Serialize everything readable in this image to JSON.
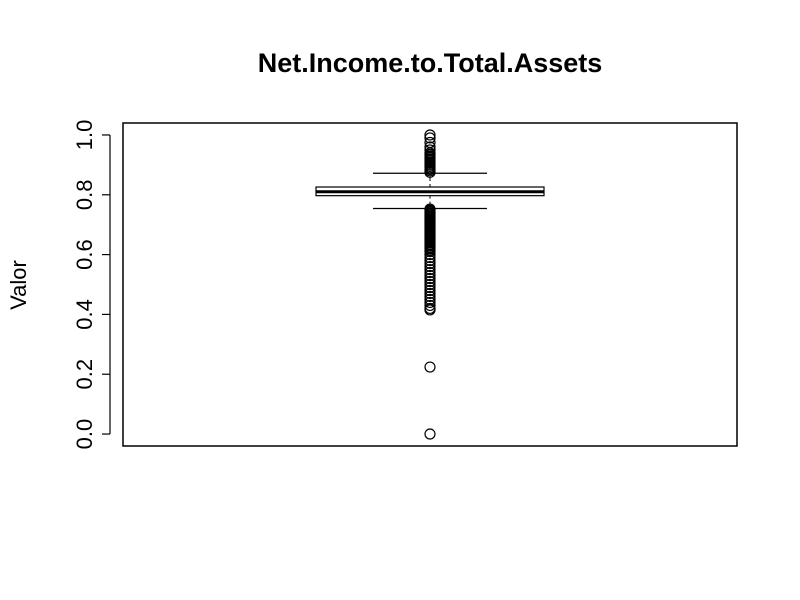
{
  "chart_data": {
    "type": "boxplot",
    "title": "Net.Income.to.Total.Assets",
    "xlabel": "",
    "ylabel": "Valor",
    "ylim": [
      -0.04,
      1.04
    ],
    "yticks": [
      0.0,
      0.2,
      0.4,
      0.6,
      0.8,
      1.0
    ],
    "ytick_labels": [
      "0.0",
      "0.2",
      "0.4",
      "0.6",
      "0.8",
      "1.0"
    ],
    "box": {
      "q1": 0.797,
      "median": 0.81,
      "q3": 0.826,
      "whisker_low": 0.754,
      "whisker_high": 0.872
    },
    "outliers": [
      1.0,
      0.99,
      0.975,
      0.96,
      0.95,
      0.94,
      0.935,
      0.93,
      0.925,
      0.92,
      0.915,
      0.91,
      0.905,
      0.9,
      0.895,
      0.89,
      0.885,
      0.88,
      0.875,
      0.752,
      0.748,
      0.744,
      0.74,
      0.736,
      0.732,
      0.728,
      0.724,
      0.72,
      0.716,
      0.712,
      0.708,
      0.704,
      0.7,
      0.696,
      0.692,
      0.688,
      0.684,
      0.68,
      0.676,
      0.672,
      0.668,
      0.664,
      0.66,
      0.655,
      0.65,
      0.645,
      0.64,
      0.635,
      0.63,
      0.625,
      0.62,
      0.615,
      0.61,
      0.6,
      0.59,
      0.58,
      0.57,
      0.56,
      0.55,
      0.54,
      0.53,
      0.52,
      0.51,
      0.5,
      0.49,
      0.48,
      0.47,
      0.46,
      0.45,
      0.44,
      0.43,
      0.42,
      0.415,
      0.224,
      0.0
    ]
  }
}
